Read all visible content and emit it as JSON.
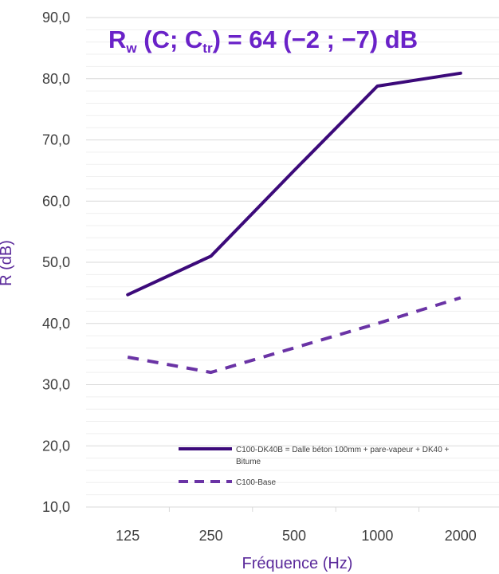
{
  "chart_data": {
    "type": "line",
    "title": {
      "r": "R",
      "r_sub": "w",
      "c_open": " (C; C",
      "c_sub": "tr",
      "rest": ") = 64 (−2 ; −7) dB"
    },
    "xlabel": "Fréquence (Hz)",
    "ylabel": "R (dB)",
    "categories": [
      "125",
      "250",
      "500",
      "1000",
      "2000"
    ],
    "ylim": [
      10,
      90
    ],
    "yticks": [
      "10,0",
      "20,0",
      "30,0",
      "40,0",
      "50,0",
      "60,0",
      "70,0",
      "80,0",
      "90,0"
    ],
    "minor_grid_step": 2,
    "grid": true,
    "legend_position": "bottom-right",
    "series": [
      {
        "name": "C100-DK40B = Dalle béton 100mm + pare-vapeur + DK40 +",
        "name_cont": "Bitume",
        "values": [
          44.7,
          51.0,
          65.0,
          78.8,
          80.9
        ],
        "color": "#3c0a7a",
        "style": "solid"
      },
      {
        "name": "C100-Base",
        "values": [
          34.5,
          32.0,
          36.0,
          40.0,
          44.2
        ],
        "color": "#6a33a5",
        "style": "dashed"
      }
    ],
    "colors": {
      "title": "#6a22c8",
      "axis_title": "#5b2a9b"
    }
  }
}
